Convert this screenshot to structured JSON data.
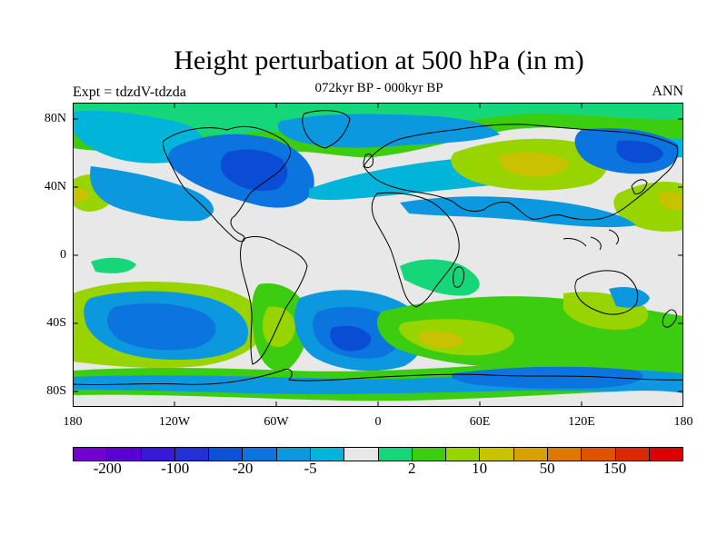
{
  "header": {
    "title": "Height perturbation at 500 hPa (in m)",
    "subtitle": "072kyr BP - 000kyr BP",
    "left_label": "Expt = tdzdV-tdzda",
    "right_label": "ANN"
  },
  "map": {
    "lat_ticks": [
      "80N",
      "40N",
      "0",
      "40S",
      "80S"
    ],
    "lon_ticks": [
      "180",
      "120W",
      "60W",
      "0",
      "60E",
      "120E",
      "180"
    ],
    "background_color": "#e8e8e8",
    "coastline_color": "#000000",
    "regions": [
      {
        "name": "n-pacific-gulf-low",
        "color": "#1E9CE0",
        "level": "-5 to -20"
      },
      {
        "name": "north-america-low",
        "color": "#0B4CD4",
        "level": "-20 to -100"
      },
      {
        "name": "n-atlantic-low",
        "color": "#1E9CE0",
        "level": "-5 to -20"
      },
      {
        "name": "eurasia-high",
        "color": "#C8C200",
        "level": "50 to 150"
      },
      {
        "name": "siberia-low",
        "color": "#0B4CD4",
        "level": "-20 to -100"
      },
      {
        "name": "s-pacific-low",
        "color": "#0B6FE0",
        "level": "-20"
      },
      {
        "name": "s-atlantic-low",
        "color": "#0B4CD4",
        "level": "-20 to -100"
      },
      {
        "name": "s-indian-high",
        "color": "#A8DC00",
        "level": "10 to 50"
      },
      {
        "name": "antarctic-low",
        "color": "#0B6FE0",
        "level": "-20"
      }
    ]
  },
  "colorbar": {
    "colors": [
      "#7300D0",
      "#5A00D4",
      "#3A18D8",
      "#2230D8",
      "#0B52D6",
      "#0B74DE",
      "#0B98DE",
      "#00B4DA",
      "#E8E8E8",
      "#16D67A",
      "#3CCC10",
      "#98D400",
      "#C8C200",
      "#D8A000",
      "#E07800",
      "#E05200",
      "#DC2800",
      "#DC0000"
    ],
    "labels": [
      "-200",
      "-100",
      "-20",
      "-5",
      "2",
      "10",
      "50",
      "150"
    ]
  }
}
